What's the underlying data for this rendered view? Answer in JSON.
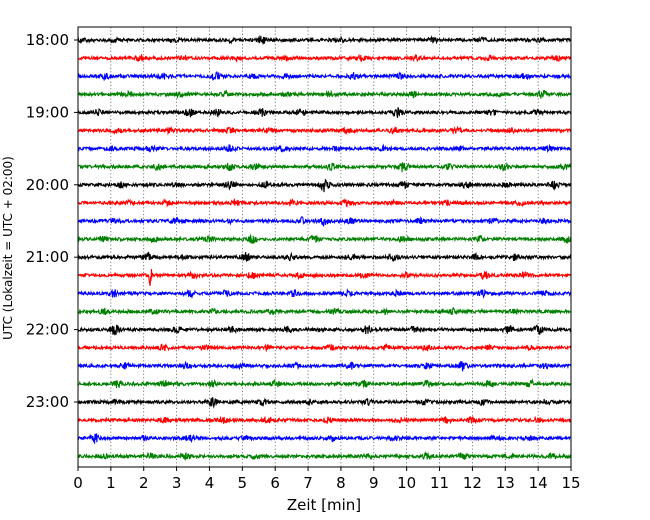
{
  "chart_data": {
    "type": "line",
    "title": "",
    "xlabel": "Zeit  [min]",
    "ylabel": "UTC (Lokalzeit = UTC + 02:00)",
    "xlim": [
      0,
      15
    ],
    "x_ticks": [
      0,
      1,
      2,
      3,
      4,
      5,
      6,
      7,
      8,
      9,
      10,
      11,
      12,
      13,
      14,
      15
    ],
    "y_tick_labels": [
      "18:00",
      "19:00",
      "20:00",
      "21:00",
      "22:00",
      "23:00"
    ],
    "grid": "vertical dotted at each minute",
    "trace_colors": [
      "#000000",
      "#ff0000",
      "#0000ff",
      "#008000"
    ],
    "traces": [
      {
        "start": "18:00",
        "events": [
          [
            0.2,
            0.25
          ],
          [
            1.1,
            0.2
          ],
          [
            2.9,
            0.25
          ],
          [
            4.7,
            0.3
          ],
          [
            5.6,
            0.4
          ],
          [
            8.0,
            0.25
          ],
          [
            10.8,
            0.25
          ],
          [
            12.3,
            0.3
          ],
          [
            14.0,
            0.2
          ]
        ]
      },
      {
        "start": "18:15",
        "events": [
          [
            1.9,
            0.35
          ],
          [
            3.2,
            0.3
          ],
          [
            4.8,
            0.25
          ],
          [
            6.4,
            0.3
          ],
          [
            8.6,
            0.3
          ],
          [
            10.3,
            0.3
          ],
          [
            12.5,
            0.25
          ],
          [
            14.6,
            0.25
          ]
        ]
      },
      {
        "start": "18:30",
        "events": [
          [
            0.8,
            0.35
          ],
          [
            2.6,
            0.3
          ],
          [
            4.2,
            0.45
          ],
          [
            5.3,
            0.3
          ],
          [
            6.3,
            0.25
          ],
          [
            8.4,
            0.35
          ],
          [
            9.8,
            0.3
          ],
          [
            13.6,
            0.3
          ]
        ]
      },
      {
        "start": "18:45",
        "events": [
          [
            1.5,
            0.25
          ],
          [
            3.1,
            0.35
          ],
          [
            4.5,
            0.25
          ],
          [
            6.3,
            0.3
          ],
          [
            7.6,
            0.3
          ],
          [
            10.2,
            0.3
          ],
          [
            12.8,
            0.25
          ],
          [
            14.1,
            0.45
          ]
        ]
      },
      {
        "start": "19:00",
        "events": [
          [
            0.6,
            0.3
          ],
          [
            3.4,
            0.5
          ],
          [
            4.2,
            0.4
          ],
          [
            5.6,
            0.45
          ],
          [
            6.8,
            0.3
          ],
          [
            9.7,
            0.55
          ],
          [
            12.6,
            0.3
          ],
          [
            14.0,
            0.25
          ]
        ]
      },
      {
        "start": "19:15",
        "events": [
          [
            1.2,
            0.25
          ],
          [
            2.8,
            0.25
          ],
          [
            4.6,
            0.3
          ],
          [
            5.8,
            0.25
          ],
          [
            8.2,
            0.3
          ],
          [
            9.6,
            0.25
          ],
          [
            11.5,
            0.25
          ],
          [
            13.2,
            0.25
          ]
        ]
      },
      {
        "start": "19:30",
        "events": [
          [
            1.0,
            0.25
          ],
          [
            2.2,
            0.3
          ],
          [
            4.6,
            0.35
          ],
          [
            6.2,
            0.3
          ],
          [
            7.8,
            0.25
          ],
          [
            9.3,
            0.3
          ],
          [
            11.6,
            0.25
          ],
          [
            14.3,
            0.25
          ]
        ]
      },
      {
        "start": "19:45",
        "events": [
          [
            2.4,
            0.35
          ],
          [
            4.6,
            0.45
          ],
          [
            5.4,
            0.4
          ],
          [
            7.7,
            0.3
          ],
          [
            9.9,
            0.6
          ],
          [
            11.3,
            0.3
          ],
          [
            13.0,
            0.3
          ],
          [
            14.8,
            0.25
          ]
        ]
      },
      {
        "start": "20:00",
        "events": [
          [
            1.3,
            0.3
          ],
          [
            3.0,
            0.25
          ],
          [
            4.6,
            0.35
          ],
          [
            5.7,
            0.35
          ],
          [
            7.5,
            0.85
          ],
          [
            9.9,
            0.35
          ],
          [
            11.8,
            0.3
          ],
          [
            13.0,
            0.3
          ],
          [
            14.5,
            0.4
          ]
        ]
      },
      {
        "start": "20:15",
        "events": [
          [
            1.6,
            0.25
          ],
          [
            2.7,
            0.3
          ],
          [
            4.8,
            0.3
          ],
          [
            6.5,
            0.3
          ],
          [
            8.2,
            0.5
          ],
          [
            9.6,
            0.3
          ],
          [
            11.2,
            0.3
          ],
          [
            13.5,
            0.3
          ]
        ]
      },
      {
        "start": "20:30",
        "events": [
          [
            1.1,
            0.25
          ],
          [
            3.0,
            0.3
          ],
          [
            4.6,
            0.25
          ],
          [
            6.8,
            0.45
          ],
          [
            7.5,
            0.55
          ],
          [
            8.3,
            0.3
          ],
          [
            10.4,
            0.3
          ],
          [
            12.6,
            0.3
          ],
          [
            14.2,
            0.25
          ]
        ]
      },
      {
        "start": "20:45",
        "events": [
          [
            0.8,
            0.3
          ],
          [
            2.3,
            0.25
          ],
          [
            4.0,
            0.35
          ],
          [
            5.3,
            0.5
          ],
          [
            7.2,
            0.4
          ],
          [
            9.9,
            0.35
          ],
          [
            12.2,
            0.3
          ],
          [
            14.9,
            0.45
          ]
        ]
      },
      {
        "start": "21:00",
        "events": [
          [
            2.1,
            0.5
          ],
          [
            3.2,
            0.25
          ],
          [
            5.1,
            0.5
          ],
          [
            6.5,
            0.3
          ],
          [
            8.3,
            0.3
          ],
          [
            9.6,
            0.3
          ],
          [
            12.1,
            0.3
          ],
          [
            13.3,
            0.35
          ]
        ]
      },
      {
        "start": "21:15",
        "events": [
          [
            2.2,
            1.3
          ],
          [
            3.5,
            0.3
          ],
          [
            5.3,
            0.35
          ],
          [
            6.7,
            0.3
          ],
          [
            8.7,
            0.25
          ],
          [
            10.0,
            0.3
          ],
          [
            12.4,
            0.45
          ],
          [
            13.6,
            0.3
          ]
        ]
      },
      {
        "start": "21:30",
        "events": [
          [
            1.1,
            0.4
          ],
          [
            3.4,
            0.4
          ],
          [
            4.5,
            0.3
          ],
          [
            6.6,
            0.3
          ],
          [
            8.2,
            0.3
          ],
          [
            9.7,
            0.25
          ],
          [
            12.3,
            0.35
          ],
          [
            14.2,
            0.25
          ]
        ]
      },
      {
        "start": "21:45",
        "events": [
          [
            0.8,
            0.3
          ],
          [
            2.3,
            0.25
          ],
          [
            4.1,
            0.3
          ],
          [
            5.9,
            0.25
          ],
          [
            7.8,
            0.3
          ],
          [
            9.3,
            0.25
          ],
          [
            11.4,
            0.3
          ],
          [
            13.3,
            0.25
          ]
        ]
      },
      {
        "start": "22:00",
        "events": [
          [
            1.1,
            0.6
          ],
          [
            3.0,
            0.3
          ],
          [
            4.7,
            0.3
          ],
          [
            6.4,
            0.3
          ],
          [
            8.8,
            0.45
          ],
          [
            10.2,
            0.3
          ],
          [
            13.1,
            0.45
          ],
          [
            14.0,
            0.5
          ]
        ]
      },
      {
        "start": "22:15",
        "events": [
          [
            2.6,
            0.3
          ],
          [
            3.9,
            0.25
          ],
          [
            5.8,
            0.25
          ],
          [
            7.7,
            0.3
          ],
          [
            9.4,
            0.25
          ],
          [
            10.6,
            0.3
          ],
          [
            12.5,
            0.25
          ],
          [
            13.8,
            0.25
          ]
        ]
      },
      {
        "start": "22:30",
        "events": [
          [
            1.4,
            0.3
          ],
          [
            3.3,
            0.3
          ],
          [
            4.9,
            0.3
          ],
          [
            6.6,
            0.25
          ],
          [
            8.3,
            0.35
          ],
          [
            10.6,
            0.3
          ],
          [
            11.7,
            0.55
          ],
          [
            14.2,
            0.25
          ]
        ]
      },
      {
        "start": "22:45",
        "events": [
          [
            1.2,
            0.4
          ],
          [
            2.6,
            0.3
          ],
          [
            4.1,
            0.3
          ],
          [
            6.0,
            0.35
          ],
          [
            8.7,
            0.4
          ],
          [
            10.6,
            0.3
          ],
          [
            12.5,
            0.3
          ],
          [
            13.8,
            0.3
          ]
        ]
      },
      {
        "start": "23:00",
        "events": [
          [
            1.1,
            0.25
          ],
          [
            4.1,
            0.45
          ],
          [
            5.6,
            0.4
          ],
          [
            7.1,
            0.3
          ],
          [
            8.8,
            0.3
          ],
          [
            10.6,
            0.3
          ],
          [
            12.3,
            0.3
          ],
          [
            14.2,
            0.25
          ]
        ]
      },
      {
        "start": "23:15",
        "events": [
          [
            2.6,
            0.25
          ],
          [
            4.4,
            0.35
          ],
          [
            5.8,
            0.35
          ],
          [
            7.6,
            0.3
          ],
          [
            9.8,
            0.3
          ],
          [
            11.2,
            0.3
          ],
          [
            12.0,
            0.4
          ],
          [
            14.0,
            0.3
          ]
        ]
      },
      {
        "start": "23:30",
        "events": [
          [
            0.5,
            0.55
          ],
          [
            2.0,
            0.25
          ],
          [
            3.4,
            0.3
          ],
          [
            5.1,
            0.25
          ],
          [
            7.7,
            0.3
          ],
          [
            9.6,
            0.3
          ],
          [
            12.7,
            0.3
          ],
          [
            13.7,
            0.25
          ]
        ]
      },
      {
        "start": "23:45",
        "events": [
          [
            0.8,
            0.25
          ],
          [
            2.2,
            0.3
          ],
          [
            3.3,
            0.3
          ],
          [
            5.4,
            0.25
          ],
          [
            8.8,
            0.35
          ],
          [
            10.6,
            0.3
          ],
          [
            11.7,
            0.3
          ],
          [
            13.1,
            0.3
          ],
          [
            14.4,
            0.25
          ]
        ]
      }
    ]
  }
}
